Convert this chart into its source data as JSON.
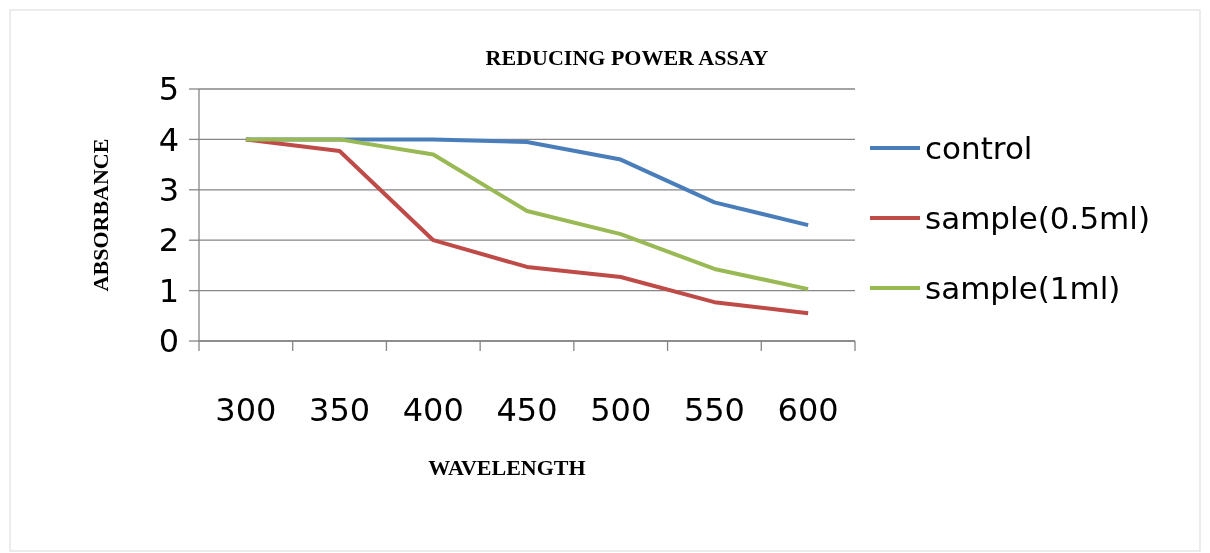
{
  "chart_data": {
    "type": "line",
    "title": "REDUCING POWER ASSAY",
    "xlabel": "WAVELENGTH",
    "ylabel": "ABSORBANCE",
    "categories": [
      "300",
      "350",
      "400",
      "450",
      "500",
      "550",
      "600"
    ],
    "series": [
      {
        "name": "control",
        "color": "#4a7ebb",
        "values": [
          4,
          4,
          4,
          3.95,
          3.6,
          2.75,
          2.3
        ]
      },
      {
        "name": "sample(0.5ml)",
        "color": "#be4b48",
        "values": [
          4,
          3.77,
          2,
          1.47,
          1.27,
          0.77,
          0.55
        ]
      },
      {
        "name": "sample(1ml)",
        "color": "#98b954",
        "values": [
          4,
          4,
          3.7,
          2.58,
          2.12,
          1.43,
          1.03
        ]
      }
    ],
    "ylim": [
      0,
      5
    ],
    "yticks": [
      0,
      1,
      2,
      3,
      4,
      5
    ],
    "grid": "y",
    "legend": "right",
    "marker": "none",
    "line_style": "solid"
  }
}
